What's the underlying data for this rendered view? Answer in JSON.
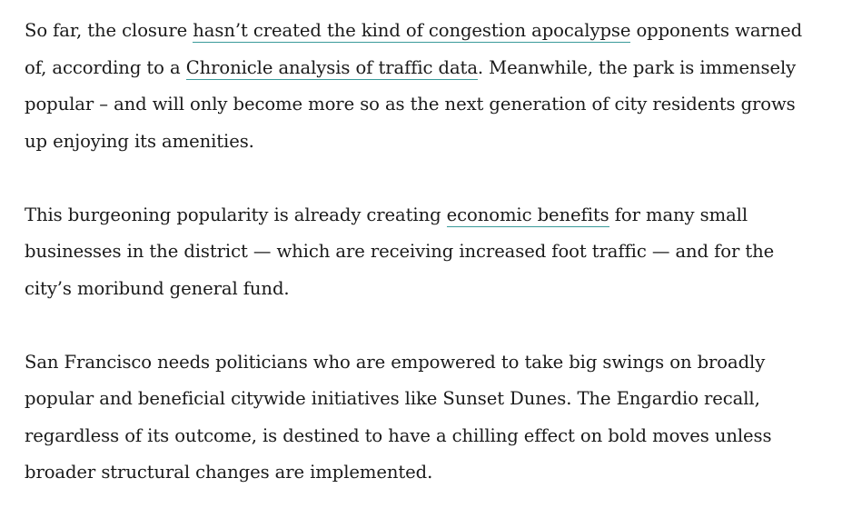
{
  "colors": {
    "text": "#1a1a1a",
    "link_underline": "#3a9a9a"
  },
  "paragraphs": [
    {
      "lines": [
        [
          {
            "t": "So far, the closure "
          },
          {
            "t": "hasn’t created the kind of congestion apocalypse",
            "link": true
          },
          {
            "t": " opponents warned"
          }
        ],
        [
          {
            "t": "of, according to a "
          },
          {
            "t": "Chronicle analysis of traffic data",
            "link": true
          },
          {
            "t": ". Meanwhile, the park is immensely"
          }
        ],
        [
          {
            "t": "popular – and will only become more so as the next generation of city residents grows"
          }
        ],
        [
          {
            "t": "up enjoying its amenities."
          }
        ]
      ]
    },
    {
      "lines": [
        [
          {
            "t": "This burgeoning popularity is already creating "
          },
          {
            "t": "economic benefits",
            "link": true
          },
          {
            "t": " for many small"
          }
        ],
        [
          {
            "t": "businesses in the district — which are receiving increased foot traffic — and for the"
          }
        ],
        [
          {
            "t": "city’s moribund general fund."
          }
        ]
      ]
    },
    {
      "lines": [
        [
          {
            "t": "San Francisco needs politicians who are empowered to take big swings on broadly"
          }
        ],
        [
          {
            "t": "popular and beneficial citywide initiatives like Sunset Dunes. The Engardio recall,"
          }
        ],
        [
          {
            "t": "regardless of its outcome, is destined to have a chilling effect on bold moves unless"
          }
        ],
        [
          {
            "t": "broader structural changes are implemented."
          }
        ]
      ]
    }
  ]
}
